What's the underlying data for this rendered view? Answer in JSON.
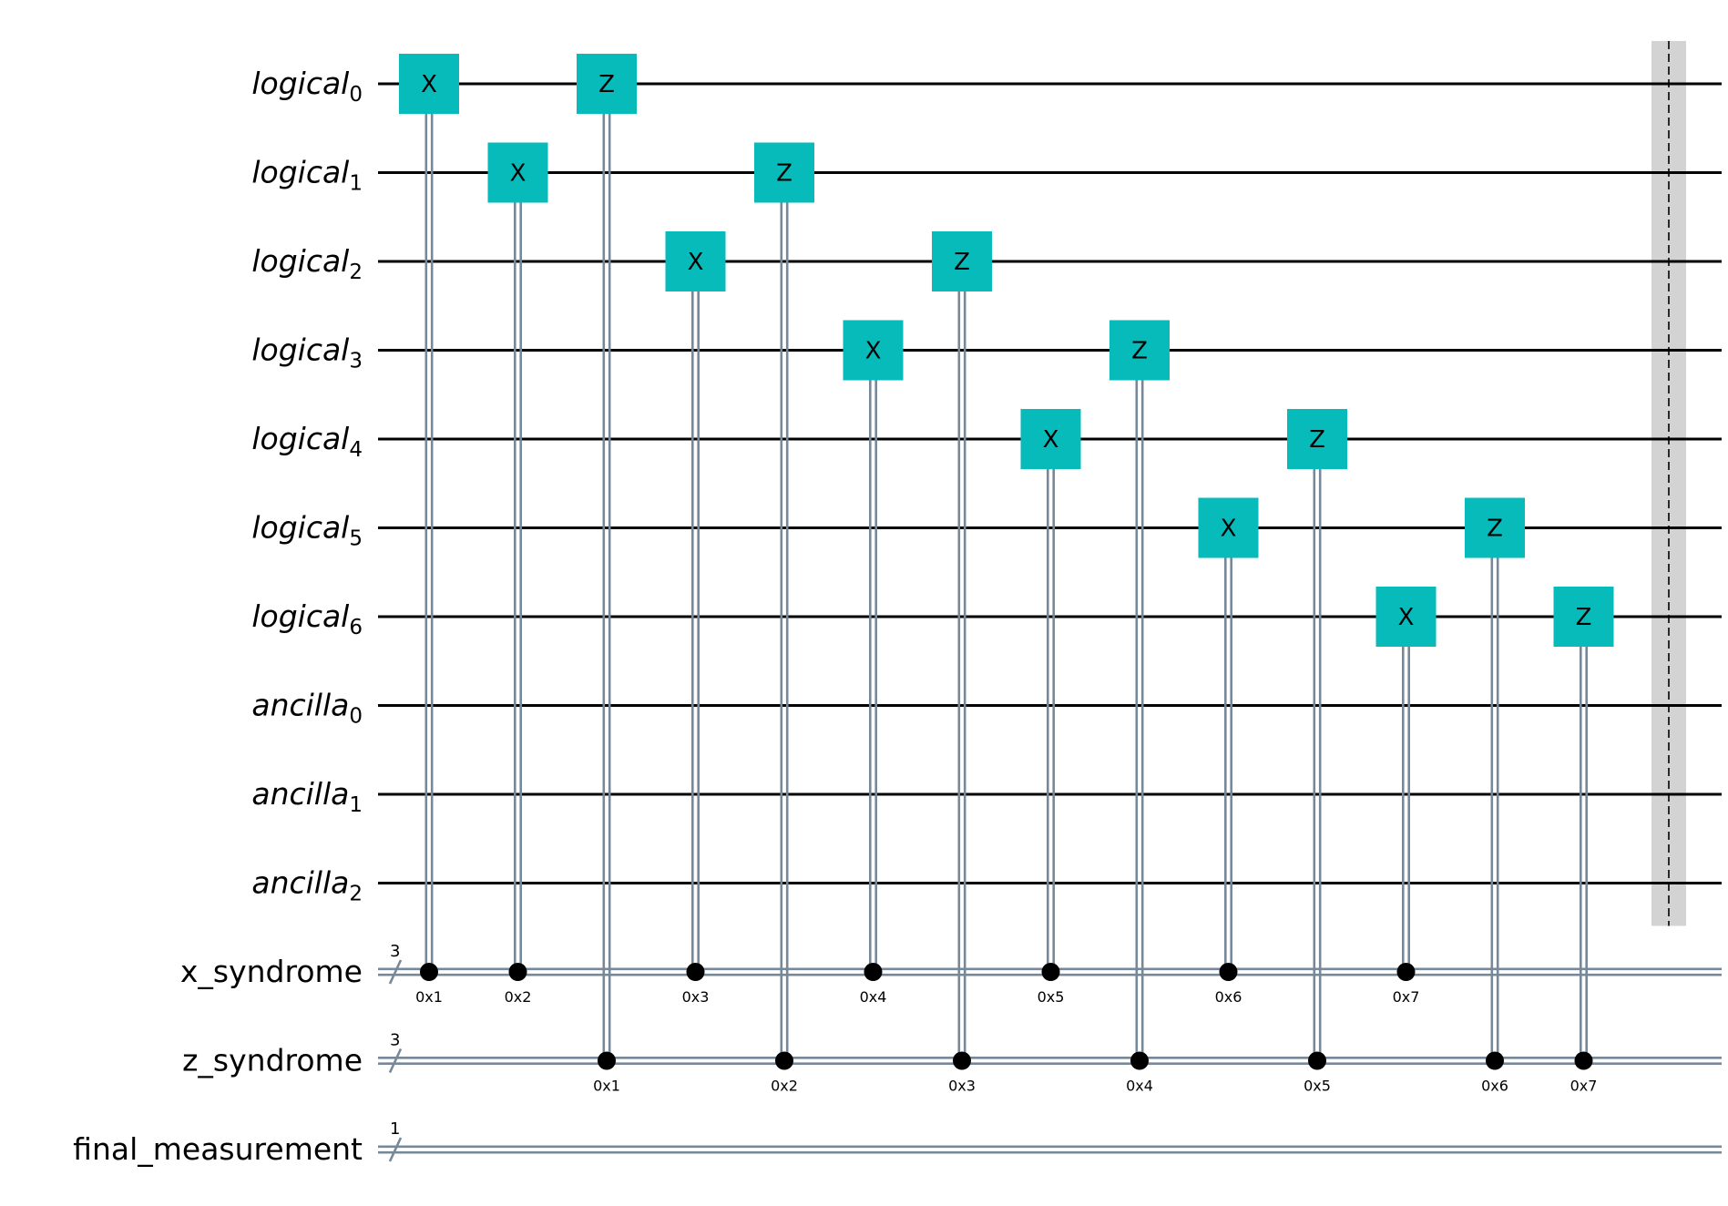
{
  "qubits": [
    {
      "name": "logical",
      "index": "0"
    },
    {
      "name": "logical",
      "index": "1"
    },
    {
      "name": "logical",
      "index": "2"
    },
    {
      "name": "logical",
      "index": "3"
    },
    {
      "name": "logical",
      "index": "4"
    },
    {
      "name": "logical",
      "index": "5"
    },
    {
      "name": "logical",
      "index": "6"
    },
    {
      "name": "ancilla",
      "index": "0"
    },
    {
      "name": "ancilla",
      "index": "1"
    },
    {
      "name": "ancilla",
      "index": "2"
    }
  ],
  "clbits": [
    {
      "name": "x_syndrome",
      "bits": "3"
    },
    {
      "name": "z_syndrome",
      "bits": "3"
    },
    {
      "name": "final_measurement",
      "bits": "1"
    }
  ],
  "gates": [
    {
      "label": "X",
      "qubit": 0,
      "column": 0,
      "condition_register": 0,
      "condition_value": "0x1"
    },
    {
      "label": "X",
      "qubit": 1,
      "column": 1,
      "condition_register": 0,
      "condition_value": "0x2"
    },
    {
      "label": "Z",
      "qubit": 0,
      "column": 2,
      "condition_register": 1,
      "condition_value": "0x1"
    },
    {
      "label": "X",
      "qubit": 2,
      "column": 3,
      "condition_register": 0,
      "condition_value": "0x3"
    },
    {
      "label": "Z",
      "qubit": 1,
      "column": 4,
      "condition_register": 1,
      "condition_value": "0x2"
    },
    {
      "label": "X",
      "qubit": 3,
      "column": 5,
      "condition_register": 0,
      "condition_value": "0x4"
    },
    {
      "label": "Z",
      "qubit": 2,
      "column": 6,
      "condition_register": 1,
      "condition_value": "0x3"
    },
    {
      "label": "X",
      "qubit": 4,
      "column": 7,
      "condition_register": 0,
      "condition_value": "0x5"
    },
    {
      "label": "Z",
      "qubit": 3,
      "column": 8,
      "condition_register": 1,
      "condition_value": "0x4"
    },
    {
      "label": "X",
      "qubit": 5,
      "column": 9,
      "condition_register": 0,
      "condition_value": "0x6"
    },
    {
      "label": "Z",
      "qubit": 4,
      "column": 10,
      "condition_register": 1,
      "condition_value": "0x5"
    },
    {
      "label": "X",
      "qubit": 6,
      "column": 11,
      "condition_register": 0,
      "condition_value": "0x7"
    },
    {
      "label": "Z",
      "qubit": 5,
      "column": 12,
      "condition_register": 1,
      "condition_value": "0x6"
    },
    {
      "label": "Z",
      "qubit": 6,
      "column": 13,
      "condition_register": 1,
      "condition_value": "0x7"
    }
  ],
  "barrier": {
    "present": true,
    "qubits": "all"
  },
  "colors": {
    "gate_fill": "#07BBBB",
    "wire": "#000000",
    "classical_wire": "#778899",
    "control_dot": "#000000",
    "barrier_fill": "#D3D3D3"
  }
}
